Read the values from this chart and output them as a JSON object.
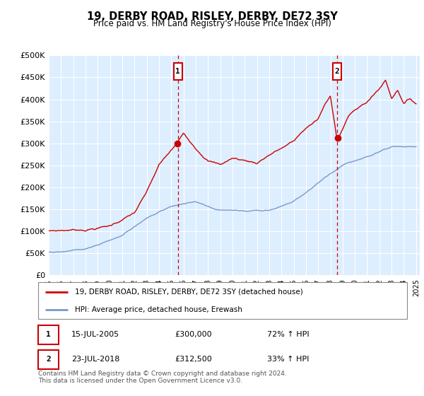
{
  "title": "19, DERBY ROAD, RISLEY, DERBY, DE72 3SY",
  "subtitle": "Price paid vs. HM Land Registry's House Price Index (HPI)",
  "ylim": [
    0,
    500000
  ],
  "yticks": [
    0,
    50000,
    100000,
    150000,
    200000,
    250000,
    300000,
    350000,
    400000,
    450000,
    500000
  ],
  "ytick_labels": [
    "£0",
    "£50K",
    "£100K",
    "£150K",
    "£200K",
    "£250K",
    "£300K",
    "£350K",
    "£400K",
    "£450K",
    "£500K"
  ],
  "sale1_date_num": 2005.54,
  "sale1_price": 300000,
  "sale1_label": "15-JUL-2005",
  "sale1_price_str": "£300,000",
  "sale1_hpi": "72% ↑ HPI",
  "sale2_date_num": 2018.56,
  "sale2_price": 312500,
  "sale2_label": "23-JUL-2018",
  "sale2_price_str": "£312,500",
  "sale2_hpi": "33% ↑ HPI",
  "legend_property": "19, DERBY ROAD, RISLEY, DERBY, DE72 3SY (detached house)",
  "legend_hpi": "HPI: Average price, detached house, Erewash",
  "footer": "Contains HM Land Registry data © Crown copyright and database right 2024.\nThis data is licensed under the Open Government Licence v3.0.",
  "plot_bg_color": "#ddeeff",
  "sale_color": "#cc0000",
  "hpi_color": "#7799cc",
  "grid_color": "#ffffff",
  "vline_color": "#cc0000",
  "box_color": "#cc0000",
  "fig_bg": "#ffffff"
}
